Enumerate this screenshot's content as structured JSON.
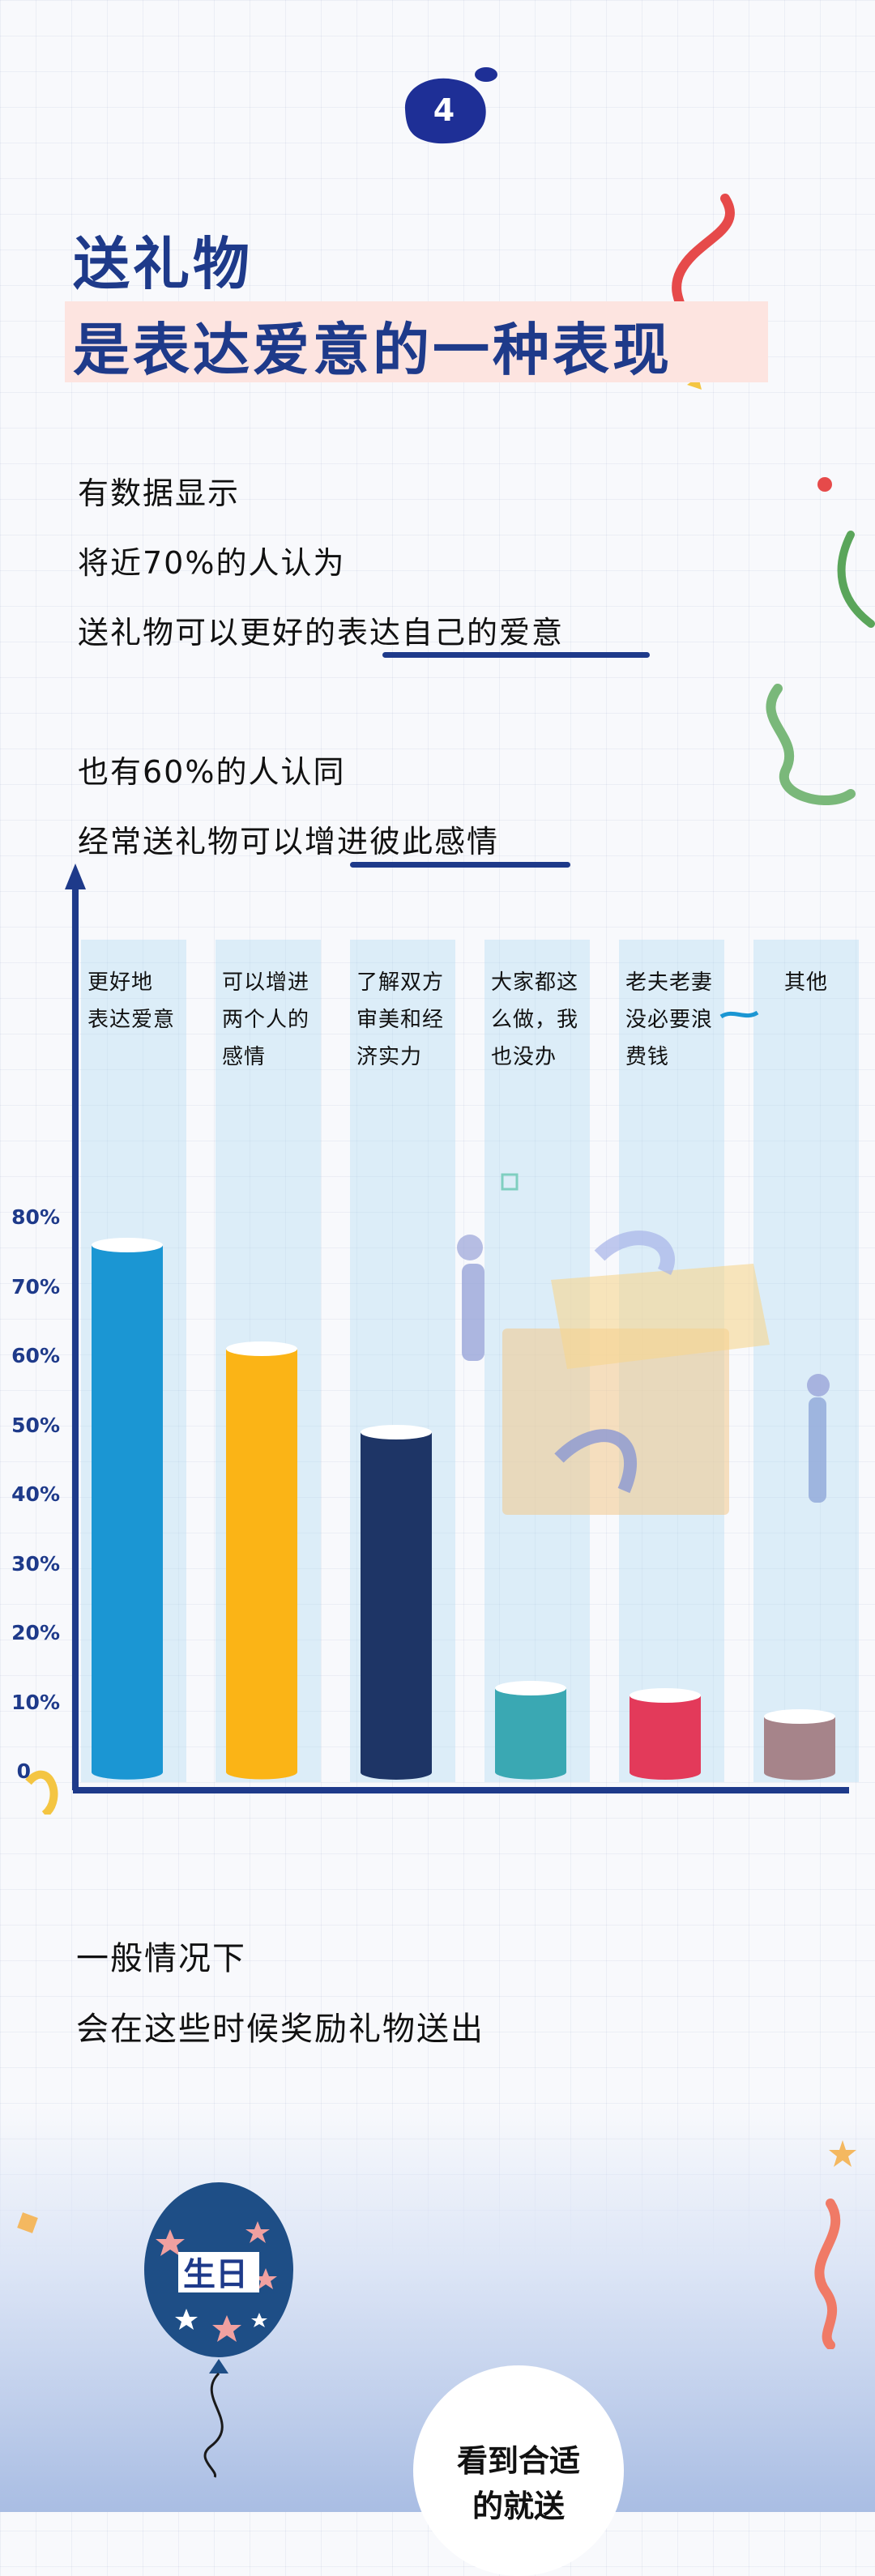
{
  "badge": {
    "number": "4"
  },
  "title": {
    "line1": "送礼物",
    "line2": "是表达爱意的一种表现"
  },
  "intro": {
    "line1": "有数据显示",
    "line2": "将近70%的人认为",
    "line3_plain": "送礼物可以更好的",
    "line3_underlined": "表达自己的爱意",
    "line4": "也有60%的人认同",
    "line5_plain": "经常送礼物可以",
    "line5_underlined": "增进彼此感情"
  },
  "chart_data": {
    "type": "bar",
    "categories": [
      "更好地\n表达爱意",
      "可以增进\n两个人的\n感情",
      "了解双方\n审美和经\n济实力",
      "大家都这\n么做，我\n也没办",
      "老夫老妻\n没必要浪\n费钱",
      "其他"
    ],
    "values": [
      76,
      61,
      49,
      12,
      11,
      8
    ],
    "colors": [
      "#1b96d3",
      "#fbb416",
      "#1e3566",
      "#3aa8b3",
      "#e33a5a",
      "#a6848a"
    ],
    "yticks": [
      "0",
      "10%",
      "20%",
      "30%",
      "40%",
      "50%",
      "60%",
      "70%",
      "80%"
    ],
    "ylim": [
      0,
      80
    ],
    "grid": false,
    "legend": "none"
  },
  "section2": {
    "line1": "一般情况下",
    "line2": "会在这些时候奖励礼物送出"
  },
  "balloon": {
    "label": "生日"
  },
  "circle": {
    "text": "看到合适\n的就送"
  }
}
